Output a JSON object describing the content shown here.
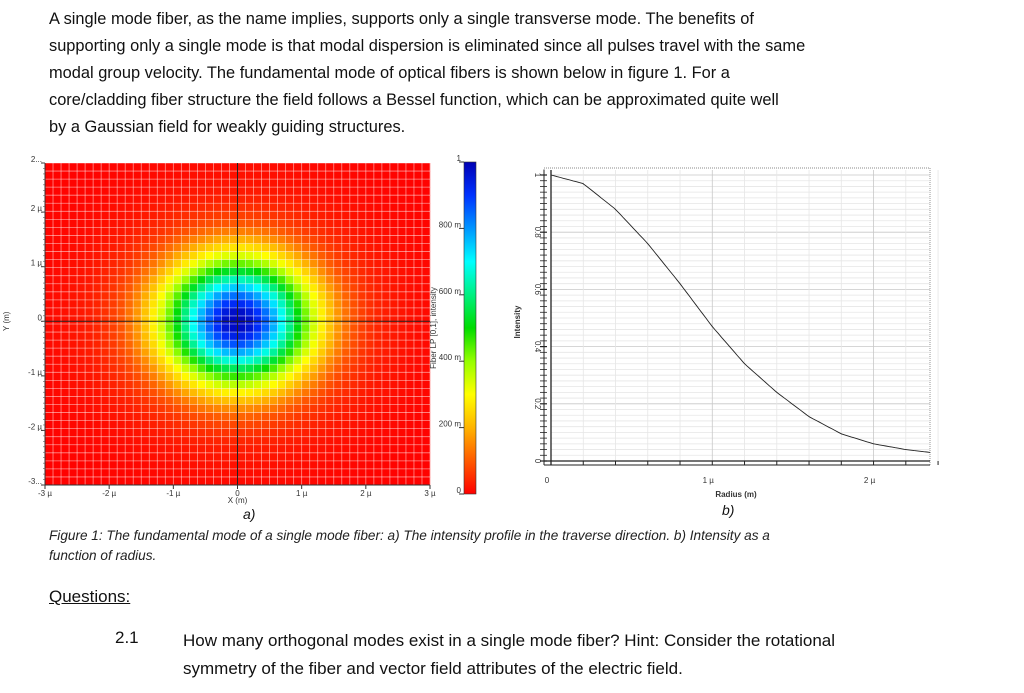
{
  "intro_lines": [
    "A single mode fiber, as the name implies, supports only a single transverse mode. The benefits of",
    "supporting only a single mode is that modal dispersion is eliminated since all pulses travel with the same",
    "modal group velocity. The fundamental mode of optical fibers is shown below in figure 1. For a",
    "core/cladding fiber structure the field follows a Bessel function, which can be approximated quite well",
    "by a Gaussian field for weakly guiding structures."
  ],
  "chart_data": [
    {
      "type": "heatmap",
      "xlabel": "X (m)",
      "ylabel": "Y (m)",
      "xlim": [
        -3e-06,
        3e-06
      ],
      "ylim": [
        -3e-06,
        2.9e-06
      ],
      "xticks": [
        "-3 µ",
        "-2 µ",
        "-1 µ",
        "0",
        "1 µ",
        "2 µ",
        "3 µ"
      ],
      "yticks": [
        "-3...",
        "-2 µ",
        "-1 µ",
        "0",
        "1 µ",
        "2 µ",
        "2..."
      ],
      "colorbar": {
        "label": "Fiber LP [0,1], intensity",
        "ticks": [
          "0",
          "200 m",
          "400 m",
          "600 m",
          "800 m",
          "1"
        ],
        "range": [
          0,
          1
        ],
        "colormap": [
          "#ff0000",
          "#ff5a00",
          "#ffb400",
          "#ffff00",
          "#96ff00",
          "#00dc00",
          "#00f080",
          "#00ffff",
          "#0096ff",
          "#0032ff",
          "#0000b4"
        ]
      },
      "grid": true,
      "panel_label": "a)"
    },
    {
      "type": "line",
      "xlabel": "Radius (m)",
      "ylabel": "Intensity",
      "xlim": [
        0,
        2.35e-06
      ],
      "ylim": [
        0,
        1
      ],
      "xticks": [
        "0",
        "1 µ",
        "2 µ"
      ],
      "yticks": [
        "0",
        "0.2",
        "0.4",
        "0.6",
        "0.8",
        "1"
      ],
      "x": [
        0,
        2e-07,
        4e-07,
        6e-07,
        8e-07,
        1e-06,
        1.2e-06,
        1.4e-06,
        1.6e-06,
        1.8e-06,
        2e-06,
        2.2e-06,
        2.35e-06
      ],
      "y": [
        1.0,
        0.97,
        0.88,
        0.76,
        0.62,
        0.47,
        0.34,
        0.24,
        0.155,
        0.095,
        0.06,
        0.04,
        0.03
      ],
      "grid": true,
      "panel_label": "b)"
    }
  ],
  "caption_lines": [
    "Figure 1: The fundamental mode of a single mode fiber: a) The intensity profile in the traverse direction. b) Intensity as a",
    "function of radius."
  ],
  "questions": {
    "heading": "Questions:",
    "items": [
      {
        "number": "2.1",
        "lines": [
          "How many orthogonal modes exist in a single mode fiber? Hint: Consider the rotational",
          "symmetry of the fiber and vector field attributes of the electric field."
        ]
      }
    ]
  }
}
